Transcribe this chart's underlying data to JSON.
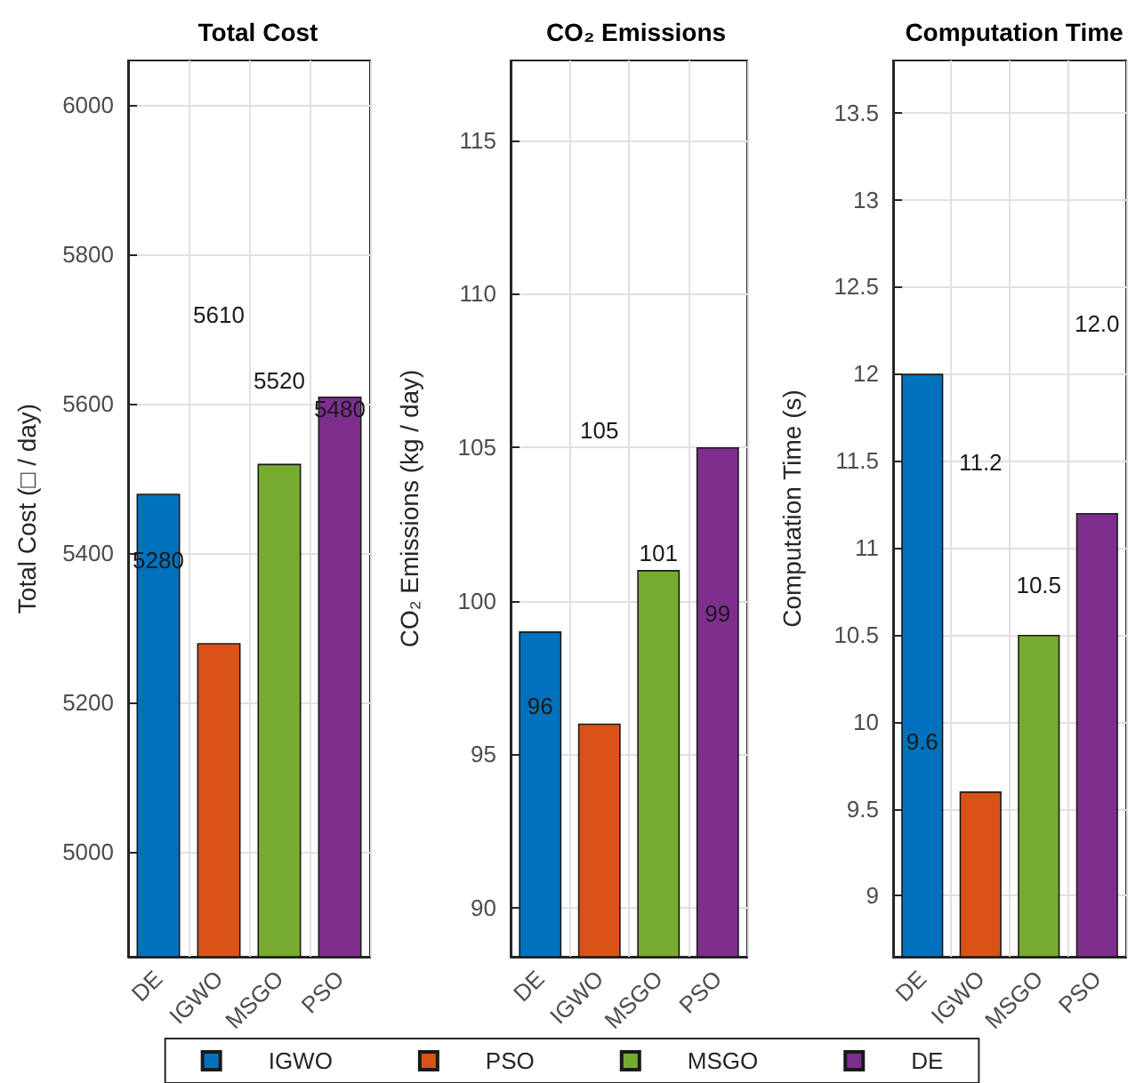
{
  "chart_data": [
    {
      "type": "bar",
      "title": "Total Cost",
      "ylabel": "Total Cost (□ / day)",
      "categories": [
        "DE",
        "IGWO",
        "MSGO",
        "PSO"
      ],
      "stacked": true,
      "series": [
        {
          "name": "IGWO",
          "color": "#0072bd",
          "values": [
            5480,
            null,
            null,
            null
          ]
        },
        {
          "name": "PSO",
          "color": "#d95319",
          "values": [
            null,
            5280,
            null,
            null
          ]
        },
        {
          "name": "MSGO",
          "color": "#77ac30",
          "values": [
            null,
            null,
            5520,
            null
          ]
        },
        {
          "name": "DE",
          "color": "#7e2f8e",
          "values": [
            null,
            null,
            null,
            5610
          ]
        }
      ],
      "ylim": [
        4860,
        6060
      ],
      "yticks": [
        5000,
        5200,
        5400,
        5600,
        5800,
        6000
      ],
      "grid": true,
      "legend": "bottom",
      "annotations": [
        "5280",
        "5610",
        "5520",
        "5480"
      ]
    },
    {
      "type": "bar",
      "title": "CO₂ Emissions",
      "ylabel": "CO₂ Emissions (kg / day)",
      "categories": [
        "DE",
        "IGWO",
        "MSGO",
        "PSO"
      ],
      "stacked": true,
      "series": [
        {
          "color": "#0072bd",
          "values": [
            99,
            null,
            null,
            null
          ]
        },
        {
          "color": "#d95319",
          "values": [
            null,
            96,
            null,
            null
          ]
        },
        {
          "color": "#77ac30",
          "values": [
            null,
            null,
            101,
            null
          ]
        },
        {
          "color": "#7e2f8e",
          "values": [
            null,
            null,
            null,
            105
          ]
        }
      ],
      "ylim": [
        88.4,
        117.6
      ],
      "yticks": [
        90,
        95,
        100,
        105,
        110,
        115
      ],
      "grid": true,
      "annotations": [
        "96",
        "105",
        "101",
        "99"
      ]
    },
    {
      "type": "bar",
      "title": "Computation Time",
      "ylabel": "Computation Time (s)",
      "categories": [
        "DE",
        "IGWO",
        "MSGO",
        "PSO"
      ],
      "stacked": true,
      "series": [
        {
          "color": "#0072bd",
          "values": [
            12,
            null,
            null,
            null
          ]
        },
        {
          "color": "#d95319",
          "values": [
            null,
            9.6,
            null,
            null
          ]
        },
        {
          "color": "#77ac30",
          "values": [
            null,
            null,
            10.5,
            null
          ]
        },
        {
          "color": "#7e2f8e",
          "values": [
            null,
            null,
            null,
            11.2
          ]
        }
      ],
      "ylim": [
        8.65,
        13.8
      ],
      "yticks": [
        9,
        9.5,
        10,
        10.5,
        11,
        11.5,
        12,
        12.5,
        13,
        13.5
      ],
      "grid": true,
      "annotations": [
        "9.6",
        "11.2",
        "10.5",
        "12.0"
      ]
    }
  ]
}
